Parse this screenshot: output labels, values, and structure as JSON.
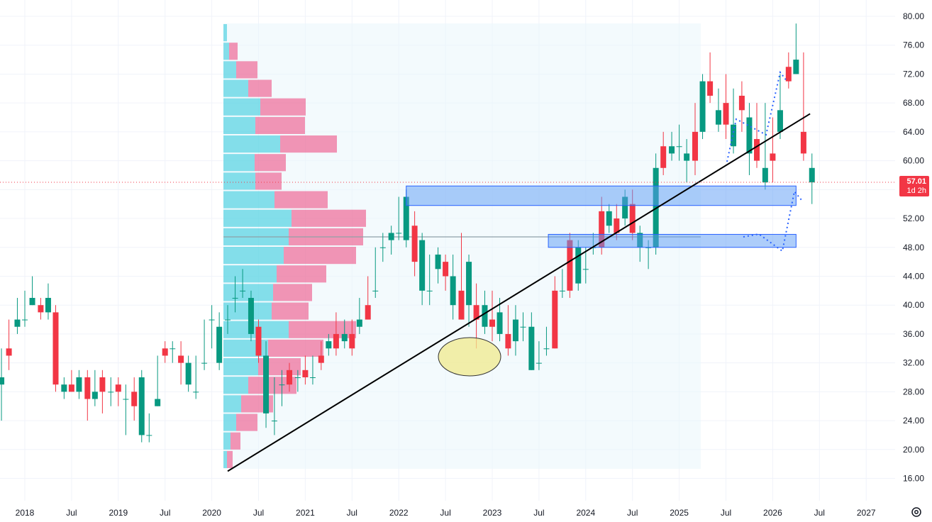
{
  "chart_data": {
    "type": "candlestick",
    "title": "",
    "ylim": [
      14,
      81
    ],
    "y_ticks": [
      "80.00",
      "76.00",
      "72.00",
      "68.00",
      "64.00",
      "60.00",
      "56.00",
      "52.00",
      "48.00",
      "44.00",
      "40.00",
      "36.00",
      "32.00",
      "28.00",
      "24.00",
      "20.00",
      "16.00"
    ],
    "x_ticks": [
      {
        "label": "2018",
        "t": 2018.0
      },
      {
        "label": "Jul",
        "t": 2018.5
      },
      {
        "label": "2019",
        "t": 2019.0
      },
      {
        "label": "Jul",
        "t": 2019.5
      },
      {
        "label": "2020",
        "t": 2020.0
      },
      {
        "label": "Jul",
        "t": 2020.5
      },
      {
        "label": "2021",
        "t": 2021.0
      },
      {
        "label": "Jul",
        "t": 2021.5
      },
      {
        "label": "2022",
        "t": 2022.0
      },
      {
        "label": "Jul",
        "t": 2022.5
      },
      {
        "label": "2023",
        "t": 2023.0
      },
      {
        "label": "Jul",
        "t": 2023.5
      },
      {
        "label": "2024",
        "t": 2024.0
      },
      {
        "label": "Jul",
        "t": 2024.5
      },
      {
        "label": "2025",
        "t": 2025.0
      },
      {
        "label": "Jul",
        "t": 2025.5
      },
      {
        "label": "2026",
        "t": 2026.0
      },
      {
        "label": "Jul",
        "t": 2026.5
      },
      {
        "label": "2027",
        "t": 2027.0
      }
    ],
    "current_price": "57.01",
    "countdown": "1d 2h",
    "colors": {
      "up": "#089981",
      "down": "#f23645",
      "zone": "#5b9cf6",
      "profile_up": "#26c6da",
      "profile_down": "#ec407a",
      "ellipse": "#f0ea8c"
    },
    "candles": [
      [
        2017.75,
        30,
        34,
        29,
        24
      ],
      [
        2017.83,
        34,
        38,
        33,
        31
      ],
      [
        2017.92,
        38,
        41,
        37,
        36
      ],
      [
        2018.0,
        38,
        42,
        38,
        37
      ],
      [
        2018.08,
        41,
        44,
        40,
        40
      ],
      [
        2018.17,
        40,
        41,
        39,
        38
      ],
      [
        2018.25,
        41,
        43,
        39,
        38
      ],
      [
        2018.33,
        39,
        40,
        29,
        28
      ],
      [
        2018.42,
        29,
        30,
        28,
        27
      ],
      [
        2018.5,
        29,
        31,
        28,
        28
      ],
      [
        2018.58,
        30,
        31,
        28,
        27
      ],
      [
        2018.67,
        30,
        31,
        27,
        24
      ],
      [
        2018.75,
        28,
        31,
        27,
        26
      ],
      [
        2018.83,
        30,
        31,
        28,
        25
      ],
      [
        2018.92,
        28,
        30,
        28,
        26
      ],
      [
        2019.0,
        29,
        30,
        28,
        26
      ],
      [
        2019.08,
        27,
        29,
        27,
        22
      ],
      [
        2019.17,
        28,
        30,
        26,
        24
      ],
      [
        2019.25,
        30,
        31,
        22,
        21
      ],
      [
        2019.33,
        22,
        25,
        22,
        21
      ],
      [
        2019.42,
        27,
        33,
        26,
        26
      ],
      [
        2019.5,
        34,
        35,
        33,
        32
      ],
      [
        2019.58,
        34,
        35,
        34,
        32
      ],
      [
        2019.67,
        33,
        35,
        32,
        29
      ],
      [
        2019.75,
        32,
        33,
        29,
        28
      ],
      [
        2019.83,
        28,
        33,
        28,
        27
      ],
      [
        2019.92,
        32,
        38,
        32,
        31
      ],
      [
        2020.0,
        38,
        40,
        38,
        34
      ],
      [
        2020.08,
        37,
        39,
        32,
        31
      ],
      [
        2020.17,
        38,
        40,
        38,
        36
      ],
      [
        2020.25,
        41,
        44,
        41,
        39
      ],
      [
        2020.33,
        42,
        45,
        42,
        41
      ],
      [
        2020.42,
        41,
        42,
        36,
        35
      ],
      [
        2020.5,
        37,
        38,
        33,
        32
      ],
      [
        2020.58,
        33,
        35,
        25,
        23
      ],
      [
        2020.67,
        24,
        30,
        24,
        22
      ],
      [
        2020.75,
        29,
        31,
        29,
        26
      ],
      [
        2020.83,
        31,
        32,
        29,
        28
      ],
      [
        2020.92,
        30,
        31,
        30,
        28
      ],
      [
        2021.0,
        31,
        33,
        30,
        29
      ],
      [
        2021.08,
        30,
        33,
        30,
        29
      ],
      [
        2021.17,
        33,
        35,
        32,
        31
      ],
      [
        2021.25,
        35,
        36,
        34,
        33
      ],
      [
        2021.33,
        36,
        39,
        34,
        33
      ],
      [
        2021.42,
        36,
        38,
        35,
        34
      ],
      [
        2021.5,
        36,
        38,
        34,
        33
      ],
      [
        2021.58,
        38,
        41,
        37,
        36
      ],
      [
        2021.67,
        40,
        44,
        38,
        38
      ],
      [
        2021.75,
        42,
        48,
        42,
        41
      ],
      [
        2021.83,
        48,
        50,
        48,
        46
      ],
      [
        2021.92,
        50,
        51,
        49,
        47
      ],
      [
        2022.0,
        50,
        55,
        50,
        49
      ],
      [
        2022.08,
        55,
        56,
        49,
        48
      ],
      [
        2022.17,
        51,
        53,
        46,
        44
      ],
      [
        2022.25,
        49,
        50,
        42,
        40
      ],
      [
        2022.33,
        42,
        47,
        42,
        40
      ],
      [
        2022.42,
        47,
        48,
        45,
        43
      ],
      [
        2022.5,
        46,
        47,
        44,
        42
      ],
      [
        2022.58,
        44,
        47,
        40,
        38
      ],
      [
        2022.67,
        42,
        50,
        38,
        38
      ],
      [
        2022.75,
        46,
        47,
        40,
        37
      ],
      [
        2022.83,
        40,
        43,
        38,
        34
      ],
      [
        2022.92,
        40,
        42,
        37,
        36
      ],
      [
        2023.0,
        38,
        42,
        37,
        35
      ],
      [
        2023.08,
        39,
        41,
        36,
        35
      ],
      [
        2023.17,
        36,
        40,
        34,
        33
      ],
      [
        2023.25,
        38,
        40,
        35,
        33
      ],
      [
        2023.33,
        37,
        39,
        37,
        35
      ],
      [
        2023.42,
        37,
        39,
        31,
        31
      ],
      [
        2023.5,
        32,
        35,
        32,
        31
      ],
      [
        2023.58,
        34,
        37,
        34,
        33
      ],
      [
        2023.67,
        42,
        44,
        34,
        34
      ],
      [
        2023.75,
        42,
        45,
        42,
        41
      ],
      [
        2023.83,
        49,
        50,
        42,
        41
      ],
      [
        2023.92,
        48,
        49,
        43,
        42
      ],
      [
        2024.0,
        45,
        48,
        45,
        43
      ],
      [
        2024.08,
        48,
        50,
        48,
        47
      ],
      [
        2024.17,
        53,
        55,
        48,
        47
      ],
      [
        2024.25,
        53,
        54,
        51,
        50
      ],
      [
        2024.33,
        52,
        54,
        50,
        49
      ],
      [
        2024.42,
        55,
        56,
        52,
        51
      ],
      [
        2024.5,
        54,
        56,
        50,
        49
      ],
      [
        2024.58,
        50,
        51,
        48,
        46
      ],
      [
        2024.67,
        48,
        49,
        48,
        45
      ],
      [
        2024.75,
        59,
        61,
        48,
        47
      ],
      [
        2024.83,
        62,
        64,
        59,
        58
      ],
      [
        2024.92,
        62,
        64,
        61,
        60
      ],
      [
        2025.0,
        62,
        65,
        62,
        60
      ],
      [
        2025.08,
        61,
        63,
        60,
        57
      ],
      [
        2025.17,
        64,
        68,
        60,
        58
      ],
      [
        2025.25,
        71,
        72,
        64,
        63
      ],
      [
        2025.33,
        71,
        75,
        69,
        68
      ],
      [
        2025.42,
        67,
        70,
        65,
        64
      ],
      [
        2025.5,
        68,
        72,
        65,
        63
      ],
      [
        2025.58,
        65,
        70,
        62,
        61
      ],
      [
        2025.67,
        69,
        71,
        67,
        64
      ],
      [
        2025.75,
        66,
        68,
        61,
        58
      ],
      [
        2025.83,
        63,
        68,
        60,
        59
      ],
      [
        2025.92,
        59,
        68,
        57,
        56
      ],
      [
        2026.0,
        61,
        66,
        60,
        57
      ],
      [
        2026.08,
        67,
        72,
        64,
        63
      ],
      [
        2026.17,
        73,
        75,
        71,
        70
      ],
      [
        2026.25,
        74,
        79,
        72,
        72
      ],
      [
        2026.33,
        64,
        75,
        61,
        60
      ],
      [
        2026.42,
        59,
        61,
        57,
        54
      ]
    ],
    "annotations": {
      "trendline": [
        [
          2020.17,
          17
        ],
        [
          2026.4,
          66.5
        ]
      ],
      "zones": [
        [
          2022.08,
          2026.25,
          53.8,
          56.5
        ],
        [
          2023.6,
          2026.25,
          48.0,
          49.8
        ]
      ]
    }
  }
}
